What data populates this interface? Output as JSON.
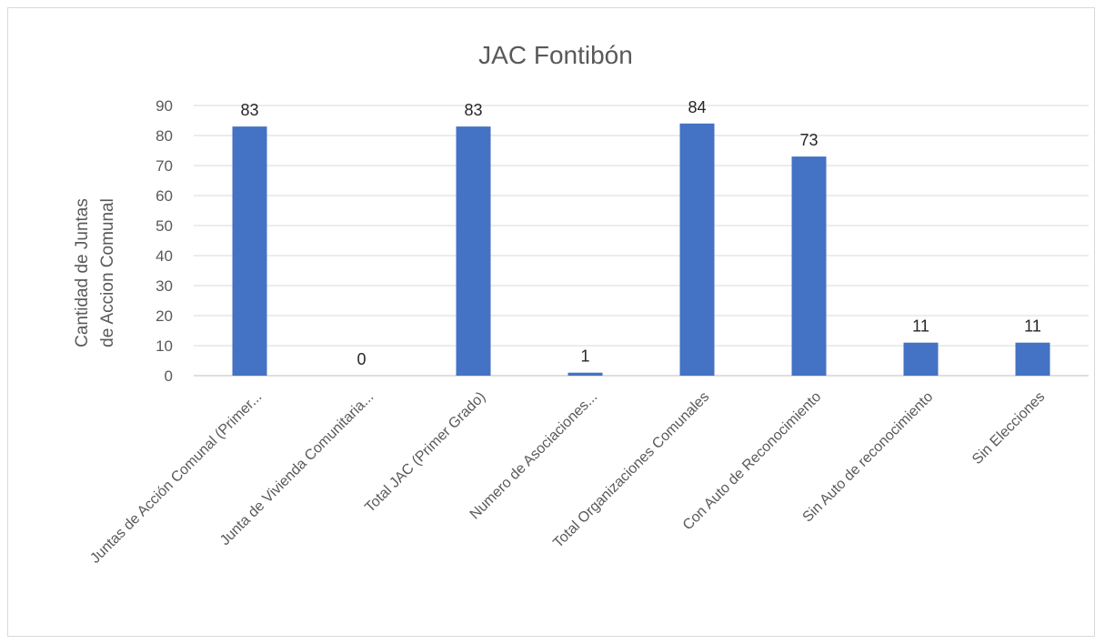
{
  "chart_data": {
    "type": "bar",
    "title": "JAC Fontibón",
    "ylabel_lines": [
      "Cantidad de Juntas",
      "de Accion Comunal"
    ],
    "xlabel": "",
    "ylim": [
      0,
      90
    ],
    "yticks": [
      0,
      10,
      20,
      30,
      40,
      50,
      60,
      70,
      80,
      90
    ],
    "grid": true,
    "legend": "none",
    "bar_color": "#4472C4",
    "categories": [
      "Juntas de Acción Comunal (Primer...",
      "Junta de Vivienda Comunitaria...",
      "Total JAC (Primer Grado)",
      "Numero de Asociaciones...",
      "Total Organizaciones Comunales",
      "Con Auto de Reconocimiento",
      "Sin Auto de reconocimiento",
      "Sin Elecciones"
    ],
    "values": [
      83,
      0,
      83,
      1,
      84,
      73,
      11,
      11
    ]
  }
}
